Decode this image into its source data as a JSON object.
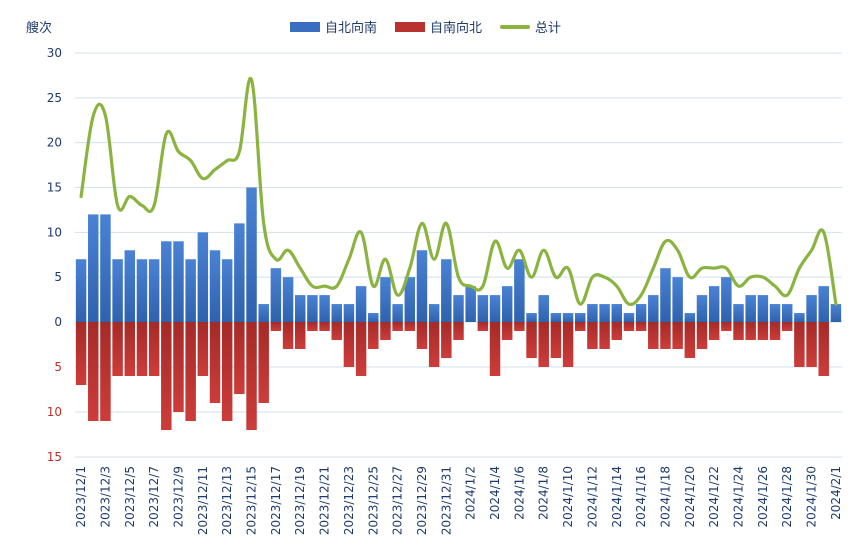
{
  "chart_data": {
    "type": "bar",
    "y_unit": "艘次",
    "categories": [
      "2023/12/1",
      "2023/12/2",
      "2023/12/3",
      "2023/12/4",
      "2023/12/5",
      "2023/12/6",
      "2023/12/7",
      "2023/12/8",
      "2023/12/9",
      "2023/12/10",
      "2023/12/11",
      "2023/12/12",
      "2023/12/13",
      "2023/12/14",
      "2023/12/15",
      "2023/12/16",
      "2023/12/17",
      "2023/12/18",
      "2023/12/19",
      "2023/12/20",
      "2023/12/21",
      "2023/12/22",
      "2023/12/23",
      "2023/12/24",
      "2023/12/25",
      "2023/12/26",
      "2023/12/27",
      "2023/12/28",
      "2023/12/29",
      "2023/12/30",
      "2023/12/31",
      "2024/1/1",
      "2024/1/2",
      "2024/1/3",
      "2024/1/4",
      "2024/1/5",
      "2024/1/6",
      "2024/1/7",
      "2024/1/8",
      "2024/1/9",
      "2024/1/10",
      "2024/1/11",
      "2024/1/12",
      "2024/1/13",
      "2024/1/14",
      "2024/1/15",
      "2024/1/16",
      "2024/1/17",
      "2024/1/18",
      "2024/1/19",
      "2024/1/20",
      "2024/1/21",
      "2024/1/22",
      "2024/1/23",
      "2024/1/24",
      "2024/1/25",
      "2024/1/26",
      "2024/1/27",
      "2024/1/28",
      "2024/1/29",
      "2024/1/30",
      "2024/1/31",
      "2024/2/1"
    ],
    "tick_labels": [
      "2023/12/1",
      "2023/12/3",
      "2023/12/5",
      "2023/12/7",
      "2023/12/9",
      "2023/12/11",
      "2023/12/13",
      "2023/12/15",
      "2023/12/17",
      "2023/12/19",
      "2023/12/21",
      "2023/12/23",
      "2023/12/25",
      "2023/12/27",
      "2023/12/29",
      "2023/12/31",
      "2024/1/2",
      "2024/1/4",
      "2024/1/6",
      "2024/1/8",
      "2024/1/10",
      "2024/1/12",
      "2024/1/14",
      "2024/1/16",
      "2024/1/18",
      "2024/1/20",
      "2024/1/22",
      "2024/1/24",
      "2024/1/26",
      "2024/1/28",
      "2024/1/30",
      "2024/2/1"
    ],
    "y_ticks_up": [
      "0",
      "5",
      "10",
      "15",
      "20",
      "25",
      "30"
    ],
    "y_ticks_down": [
      "5",
      "10",
      "15"
    ],
    "ylim": [
      -15,
      30
    ],
    "grid": true,
    "legend_position": "top-center",
    "series": [
      {
        "name": "自北向南",
        "color": "#3a6fc0",
        "kind": "bar-up",
        "values": [
          7,
          12,
          12,
          7,
          8,
          7,
          7,
          9,
          9,
          7,
          10,
          8,
          7,
          11,
          15,
          2,
          6,
          5,
          3,
          3,
          3,
          2,
          2,
          4,
          1,
          5,
          2,
          5,
          8,
          2,
          7,
          3,
          4,
          3,
          3,
          4,
          7,
          1,
          3,
          1,
          1,
          1,
          2,
          2,
          2,
          1,
          2,
          3,
          6,
          5,
          1,
          3,
          4,
          5,
          2,
          3,
          3,
          2,
          2,
          1,
          3,
          4,
          2
        ]
      },
      {
        "name": "自南向北",
        "color": "#b83230",
        "kind": "bar-down",
        "values": [
          7,
          11,
          11,
          6,
          6,
          6,
          6,
          12,
          10,
          11,
          6,
          9,
          11,
          8,
          12,
          9,
          1,
          3,
          3,
          1,
          1,
          2,
          5,
          6,
          3,
          2,
          1,
          1,
          3,
          5,
          4,
          2,
          0,
          1,
          6,
          2,
          1,
          4,
          5,
          4,
          5,
          1,
          3,
          3,
          2,
          1,
          1,
          3,
          3,
          3,
          4,
          3,
          2,
          1,
          2,
          2,
          2,
          2,
          1,
          5,
          5,
          6,
          0
        ]
      },
      {
        "name": "总计",
        "color": "#8bb340",
        "kind": "line",
        "values": [
          14,
          23,
          23,
          13,
          14,
          13,
          13,
          21,
          19,
          18,
          16,
          17,
          18,
          19,
          27,
          11,
          7,
          8,
          6,
          4,
          4,
          4,
          7,
          10,
          4,
          7,
          3,
          6,
          11,
          7,
          11,
          5,
          4,
          4,
          9,
          6,
          8,
          5,
          8,
          5,
          6,
          2,
          5,
          5,
          4,
          2,
          3,
          6,
          9,
          8,
          5,
          6,
          6,
          6,
          4,
          5,
          5,
          4,
          3,
          6,
          8,
          10,
          2
        ]
      }
    ]
  }
}
